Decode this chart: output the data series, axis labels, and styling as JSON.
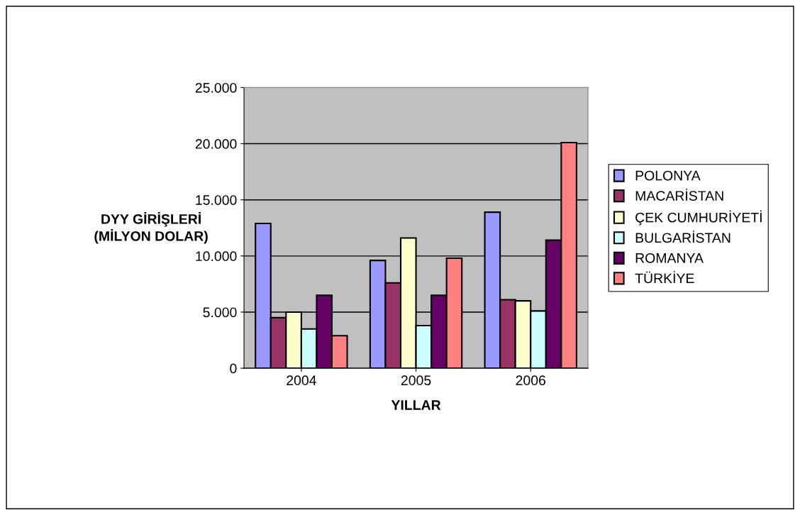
{
  "chart_data": {
    "type": "bar",
    "xlabel": "YILLAR",
    "ylabel": "DYY GİRİŞLERİ\n(MİLYON DOLAR)",
    "categories": [
      "2004",
      "2005",
      "2006"
    ],
    "series": [
      {
        "name": "POLONYA",
        "color": "#9999ff",
        "values": [
          12900,
          9600,
          13900
        ]
      },
      {
        "name": "MACARİSTAN",
        "color": "#993366",
        "values": [
          4500,
          7600,
          6100
        ]
      },
      {
        "name": "ÇEK CUMHURİYETİ",
        "color": "#ffffcc",
        "values": [
          5000,
          11600,
          6000
        ]
      },
      {
        "name": "BULGARİSTAN",
        "color": "#ccffff",
        "values": [
          3500,
          3800,
          5100
        ]
      },
      {
        "name": "ROMANYA",
        "color": "#660066",
        "values": [
          6500,
          6500,
          11400
        ]
      },
      {
        "name": "TÜRKİYE",
        "color": "#ff8080",
        "values": [
          2900,
          9800,
          20100
        ]
      }
    ],
    "ylim": [
      0,
      25000
    ],
    "yticks": [
      {
        "value": 0,
        "label": "0"
      },
      {
        "value": 5000,
        "label": "5.000"
      },
      {
        "value": 10000,
        "label": "10.000"
      },
      {
        "value": 15000,
        "label": "15.000"
      },
      {
        "value": 20000,
        "label": "20.000"
      },
      {
        "value": 25000,
        "label": "25.000"
      }
    ],
    "grid": "y",
    "legend": "right"
  }
}
